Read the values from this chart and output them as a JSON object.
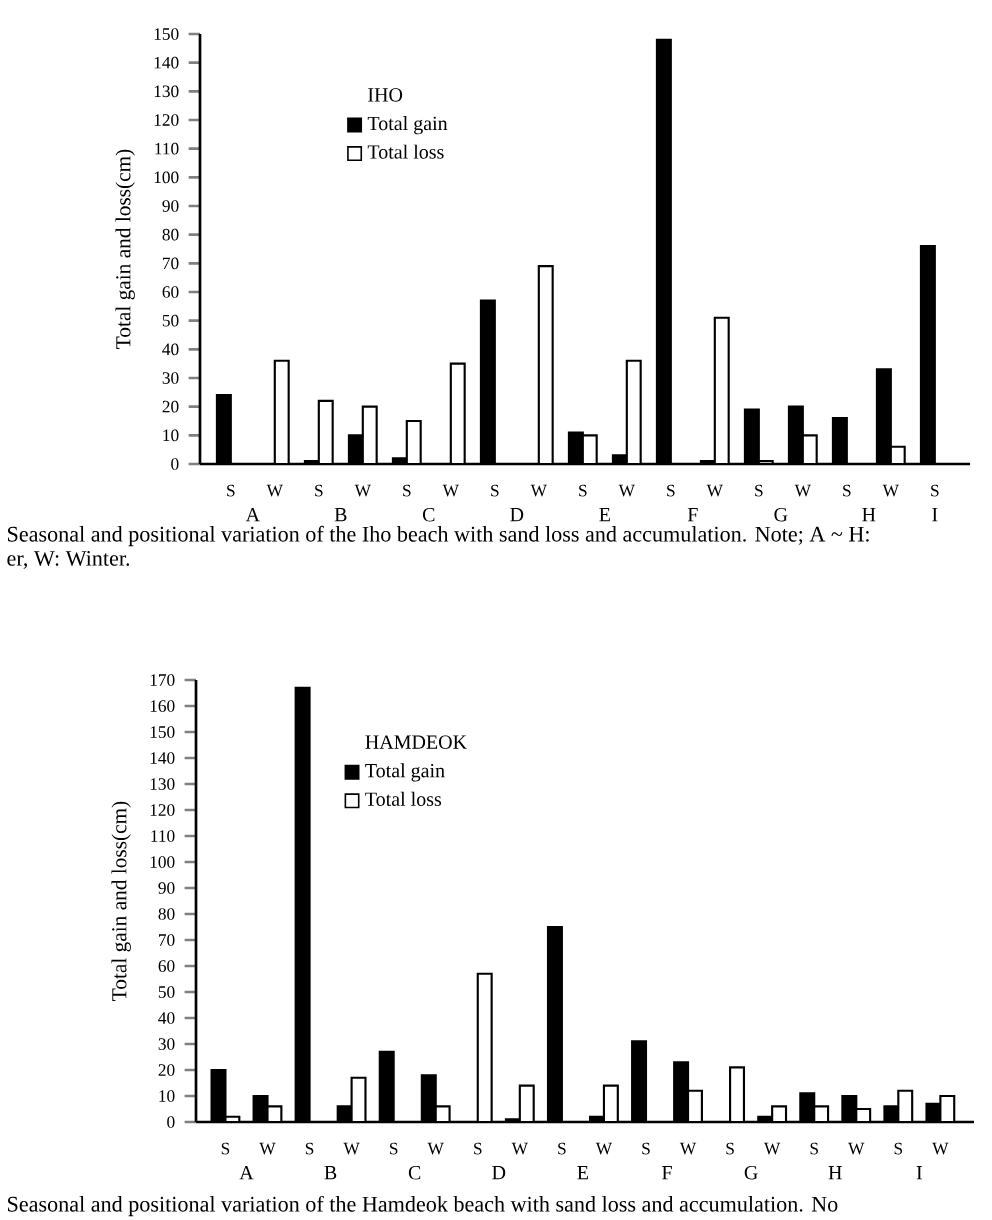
{
  "chart_data": [
    {
      "type": "bar",
      "ylabel": "Total gain and loss(cm)",
      "legend_title": "IHO",
      "legend": "top left",
      "categories": [
        "S",
        "W",
        "S",
        "W",
        "S",
        "W",
        "S",
        "W",
        "S",
        "W",
        "S",
        "W",
        "S",
        "W",
        "S",
        "W",
        "S"
      ],
      "series": [
        {
          "name": "Total gain",
          "color": "#000000",
          "values": [
            24,
            0,
            1,
            10,
            2,
            0,
            57,
            0,
            11,
            3,
            148,
            1,
            19,
            20,
            16,
            33,
            76
          ]
        },
        {
          "name": "Total loss",
          "color": "#ffffff",
          "values": [
            0,
            36,
            22,
            20,
            15,
            35,
            0,
            69,
            10,
            36,
            0,
            51,
            1,
            10,
            0,
            6,
            0
          ]
        }
      ],
      "ylim": [
        0,
        150
      ],
      "yticks": [
        0,
        10,
        20,
        30,
        40,
        50,
        60,
        70,
        80,
        90,
        100,
        110,
        120,
        130,
        140,
        150
      ],
      "annotations": [
        "A",
        "B",
        "C",
        "D",
        "E",
        "F",
        "G",
        "H",
        "I",
        "Seasonal and positional variation of the Iho beach with sand loss and accumulation. Note; A ~ H:",
        "er, W: Winter."
      ]
    },
    {
      "type": "bar",
      "ylabel": "Total gain and loss(cm)",
      "legend_title": "HAMDEOK",
      "legend": "top left",
      "categories": [
        "S",
        "W",
        "S",
        "W",
        "S",
        "W",
        "S",
        "W",
        "S",
        "W",
        "S",
        "W",
        "S",
        "W",
        "S",
        "W",
        "S",
        "W"
      ],
      "series": [
        {
          "name": "Total gain",
          "color": "#000000",
          "values": [
            20,
            10,
            167,
            6,
            27,
            18,
            0,
            1,
            75,
            2,
            31,
            23,
            0,
            2,
            11,
            10,
            6,
            7
          ]
        },
        {
          "name": "Total loss",
          "color": "#ffffff",
          "values": [
            2,
            6,
            0,
            17,
            0,
            6,
            57,
            14,
            0,
            14,
            0,
            12,
            21,
            6,
            6,
            5,
            12,
            10
          ]
        }
      ],
      "ylim": [
        0,
        170
      ],
      "yticks": [
        0,
        10,
        20,
        30,
        40,
        50,
        60,
        70,
        80,
        90,
        100,
        110,
        120,
        130,
        140,
        150,
        160,
        170
      ],
      "annotations": [
        "A",
        "B",
        "C",
        "D",
        "E",
        "F",
        "G",
        "H",
        "I",
        "Seasonal and positional variation of the Hamdeok beach with sand loss and accumulation. No"
      ]
    }
  ]
}
